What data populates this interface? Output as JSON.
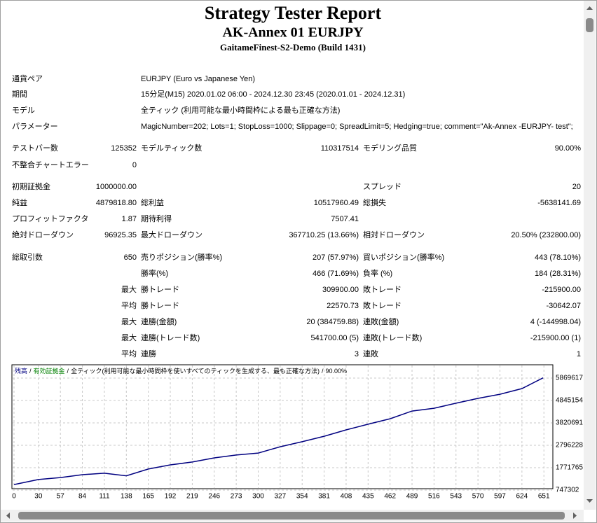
{
  "header": {
    "title": "Strategy Tester Report",
    "subtitle": "AK-Annex 01 EURJPY",
    "server": "GaitameFinest-S2-Demo (Build 1431)"
  },
  "info": {
    "rows": [
      [
        "通貨ペア",
        "EURJPY (Euro vs Japanese Yen)"
      ],
      [
        "期間",
        "15分足(M15) 2020.01.02 06:00 - 2024.12.30 23:45 (2020.01.01 - 2024.12.31)"
      ],
      [
        "モデル",
        "全ティック (利用可能な最小時間枠による最も正確な方法)"
      ],
      [
        "パラメーター",
        "MagicNumber=202; Lots=1; StopLoss=1000; Slippage=0; SpreadLimit=5; Hedging=true; comment=\"Ak-Annex -EURJPY- test\";"
      ]
    ]
  },
  "table": {
    "rows": [
      [
        "テストバー数",
        "125352",
        "モデルティック数",
        "110317514",
        "モデリング品質",
        "90.00%"
      ],
      [
        "不整合チャートエラー",
        "0",
        null,
        null,
        null,
        null
      ],
      [
        "初期証拠金",
        "1000000.00",
        null,
        null,
        "スプレッド",
        "20"
      ],
      [
        "純益",
        "4879818.80",
        "総利益",
        "10517960.49",
        "総損失",
        "-5638141.69"
      ],
      [
        "プロフィットファクタ",
        "1.87",
        "期待利得",
        "7507.41",
        null,
        null
      ],
      [
        "絶対ドローダウン",
        "96925.35",
        "最大ドローダウン",
        "367710.25 (13.66%)",
        "相対ドローダウン",
        "20.50% (232800.00)"
      ],
      [
        "総取引数",
        "650",
        "売りポジション(勝率%)",
        "207 (57.97%)",
        "買いポジション(勝率%)",
        "443 (78.10%)"
      ],
      [
        null,
        null,
        "勝率(%)",
        "466 (71.69%)",
        "負率 (%)",
        "184 (28.31%)"
      ],
      [
        null,
        "最大",
        "勝トレード",
        "309900.00",
        "敗トレード",
        "-215900.00"
      ],
      [
        null,
        "平均",
        "勝トレード",
        "22570.73",
        "敗トレード",
        "-30642.07"
      ],
      [
        null,
        "最大",
        "連勝(金額)",
        "20 (384759.88)",
        "連敗(金額)",
        "4 (-144998.04)"
      ],
      [
        null,
        "最大",
        "連勝(トレード数)",
        "541700.00 (5)",
        "連敗(トレード数)",
        "-215900.00 (1)"
      ],
      [
        null,
        "平均",
        "連勝",
        "3",
        "連敗",
        "1"
      ]
    ]
  },
  "chart_data": {
    "type": "line",
    "x": [
      0,
      30,
      57,
      84,
      111,
      138,
      165,
      192,
      219,
      246,
      273,
      300,
      327,
      354,
      381,
      408,
      435,
      462,
      489,
      516,
      543,
      570,
      597,
      624,
      650
    ],
    "series": [
      {
        "name": "残高",
        "color": "#000080",
        "values": [
          1000000,
          1230000,
          1320000,
          1450000,
          1520000,
          1400000,
          1710000,
          1900000,
          2030000,
          2220000,
          2350000,
          2440000,
          2730000,
          2960000,
          3210000,
          3500000,
          3760000,
          4010000,
          4360000,
          4490000,
          4720000,
          4940000,
          5130000,
          5390000,
          5879818.8
        ]
      }
    ],
    "annotations": [
      {
        "text": "有効証拠金",
        "color": "#008000"
      },
      {
        "text": "全ティック(利用可能な最小時間枠を使いすべてのティックを生成する、最も正確な方法)",
        "color": "#000000"
      },
      {
        "text": "90.00%",
        "color": "#000000"
      }
    ],
    "legend_separator": "/",
    "xlim": [
      0,
      662
    ],
    "xticks": [
      0,
      30,
      57,
      84,
      111,
      138,
      165,
      192,
      219,
      246,
      273,
      300,
      327,
      354,
      381,
      408,
      435,
      462,
      489,
      516,
      543,
      570,
      597,
      624,
      651
    ],
    "ylim": [
      747302,
      6445000
    ],
    "yticks": [
      747302,
      1771765,
      2796228,
      3820691,
      4845154,
      5869617
    ],
    "grid": true
  }
}
